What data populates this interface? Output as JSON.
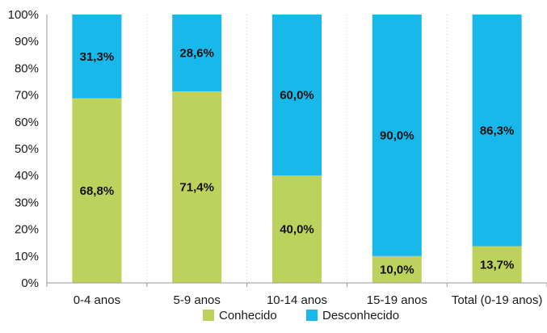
{
  "chart_data": {
    "type": "bar",
    "stacked": true,
    "categories": [
      "0-4 anos",
      "5-9 anos",
      "10-14 anos",
      "15-19 anos",
      "Total (0-19 anos)"
    ],
    "series": [
      {
        "name": "Conhecido",
        "color": "#bcd25d",
        "values": [
          68.8,
          71.4,
          40.0,
          10.0,
          13.7
        ],
        "labels": [
          "68,8%",
          "71,4%",
          "40,0%",
          "10,0%",
          "13,7%"
        ]
      },
      {
        "name": "Desconhecido",
        "color": "#18b9ea",
        "values": [
          31.3,
          28.6,
          60.0,
          90.0,
          86.3
        ],
        "labels": [
          "31,3%",
          "28,6%",
          "60,0%",
          "90,0%",
          "86,3%"
        ]
      }
    ],
    "ylim": [
      0,
      100
    ],
    "yticks": [
      0,
      10,
      20,
      30,
      40,
      50,
      60,
      70,
      80,
      90,
      100
    ],
    "ytick_labels": [
      "0%",
      "10%",
      "20%",
      "30%",
      "40%",
      "50%",
      "60%",
      "70%",
      "80%",
      "90%",
      "100%"
    ],
    "title": "",
    "xlabel": "",
    "ylabel": "",
    "grid": "vertical dotted",
    "legend_position": "bottom"
  }
}
